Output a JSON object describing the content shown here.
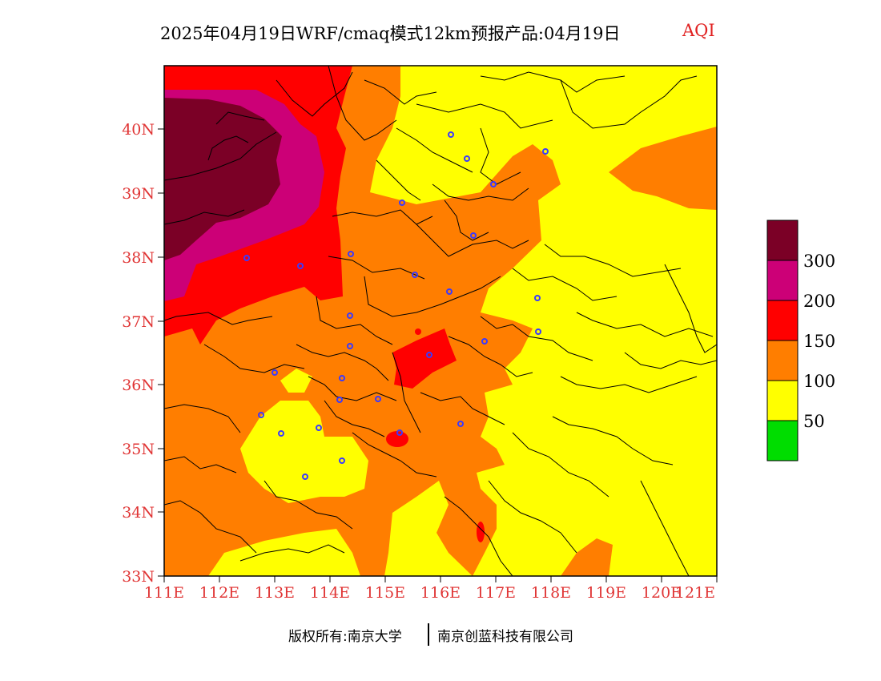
{
  "title": {
    "main": "2025年04月19日WRF/cmaq模式12km预报产品:04月19日",
    "variable": "AQI"
  },
  "footer": {
    "copyright": "版权所有:南京大学",
    "company": "南京创蓝科技有限公司"
  },
  "axes": {
    "x_ticks": [
      "111E",
      "112E",
      "113E",
      "114E",
      "115E",
      "116E",
      "117E",
      "118E",
      "119E",
      "120E",
      "121E"
    ],
    "y_ticks": [
      "40N",
      "39N",
      "38N",
      "37N",
      "36N",
      "35N",
      "34N",
      "33N"
    ]
  },
  "legend": {
    "labels": [
      "300",
      "200",
      "150",
      "100",
      "50"
    ],
    "colors": [
      "#7b0026",
      "#cc0077",
      "#ff0000",
      "#ff7e00",
      "#ffff00",
      "#00dd00"
    ]
  },
  "colors": {
    "tick_text": "#e03535",
    "title_variable": "#e02020",
    "station_marker": "#3a3aff"
  }
}
